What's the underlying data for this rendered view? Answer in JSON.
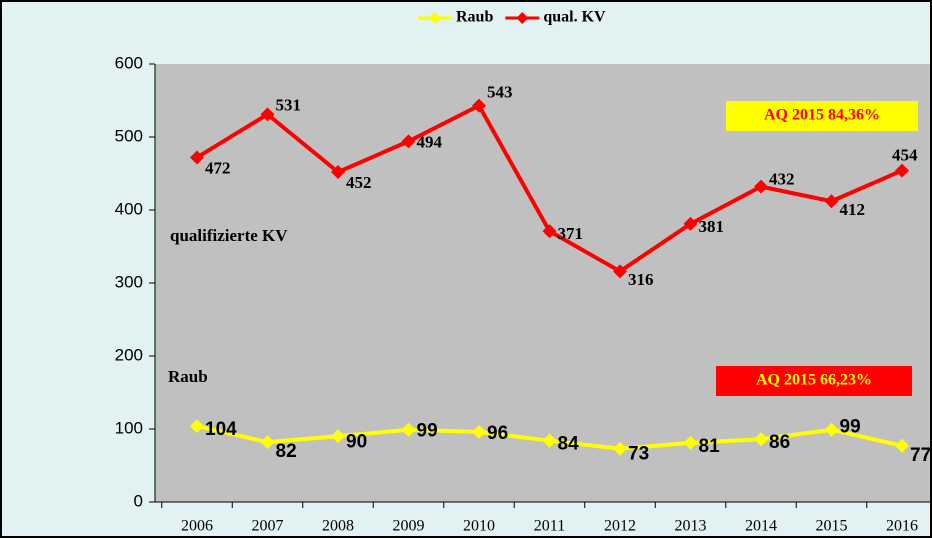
{
  "chart_data": {
    "type": "line",
    "categories": [
      "2006",
      "2007",
      "2008",
      "2009",
      "2010",
      "2011",
      "2012",
      "2013",
      "2014",
      "2015",
      "2016"
    ],
    "series": [
      {
        "name": "Raub",
        "color": "#ffff00",
        "values": [
          104,
          82,
          90,
          99,
          96,
          84,
          73,
          81,
          86,
          99,
          77
        ]
      },
      {
        "name": "qual. KV",
        "color": "#ff0000",
        "values": [
          472,
          531,
          452,
          494,
          543,
          371,
          316,
          381,
          432,
          412,
          454
        ]
      }
    ],
    "ylim": [
      0,
      600
    ],
    "yticks": [
      0,
      100,
      200,
      300,
      400,
      500,
      600
    ],
    "annotations": [
      "qualifizierte KV",
      "Raub",
      "AQ 2015  84,36%",
      "AQ 2015  66,23%"
    ],
    "legend": "top"
  }
}
